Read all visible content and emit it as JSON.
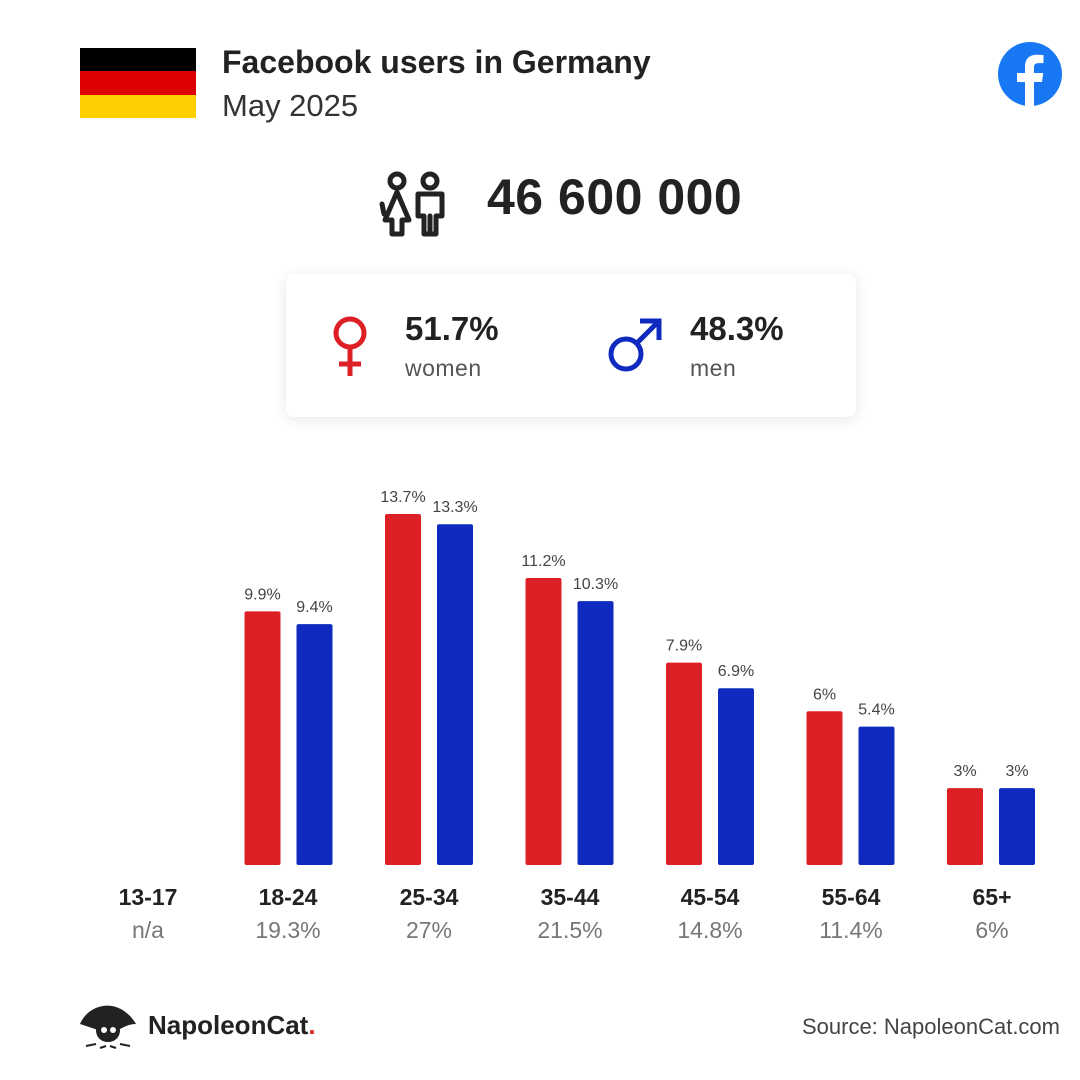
{
  "header": {
    "title": "Facebook users in Germany",
    "subtitle": "May 2025",
    "flag_colors": [
      "#000000",
      "#dd0000",
      "#ffce00"
    ],
    "flag_icon": "germany-flag-icon",
    "platform_icon": "facebook-logo-icon"
  },
  "total": {
    "value": "46 600 000",
    "icon": "users-icon"
  },
  "gender": {
    "women": {
      "percent": "51.7%",
      "label": "women",
      "icon": "female-symbol-icon"
    },
    "men": {
      "percent": "48.3%",
      "label": "men",
      "icon": "male-symbol-icon"
    }
  },
  "colors": {
    "women": "#dd1f26",
    "men": "#0f2bbf",
    "facebook": "#1877f2"
  },
  "chart_data": {
    "type": "bar",
    "categories": [
      "13-17",
      "18-24",
      "25-34",
      "35-44",
      "45-54",
      "55-64",
      "65+"
    ],
    "category_shares": [
      "n/a",
      "19.3%",
      "27%",
      "21.5%",
      "14.8%",
      "11.4%",
      "6%"
    ],
    "series": [
      {
        "name": "women",
        "values": [
          null,
          9.9,
          13.7,
          11.2,
          7.9,
          6,
          3
        ],
        "labels": [
          "",
          "9.9%",
          "13.7%",
          "11.2%",
          "7.9%",
          "6%",
          "3%"
        ]
      },
      {
        "name": "men",
        "values": [
          null,
          9.4,
          13.3,
          10.3,
          6.9,
          5.4,
          3
        ],
        "labels": [
          "",
          "9.4%",
          "13.3%",
          "10.3%",
          "6.9%",
          "5.4%",
          "3%"
        ]
      }
    ],
    "ylim": [
      0,
      13.7
    ],
    "grid": false
  },
  "footer": {
    "brand": "NapoleonCat",
    "brand_dot": ".",
    "brand_icon": "napoleoncat-logo-icon",
    "source": "Source: NapoleonCat.com"
  }
}
